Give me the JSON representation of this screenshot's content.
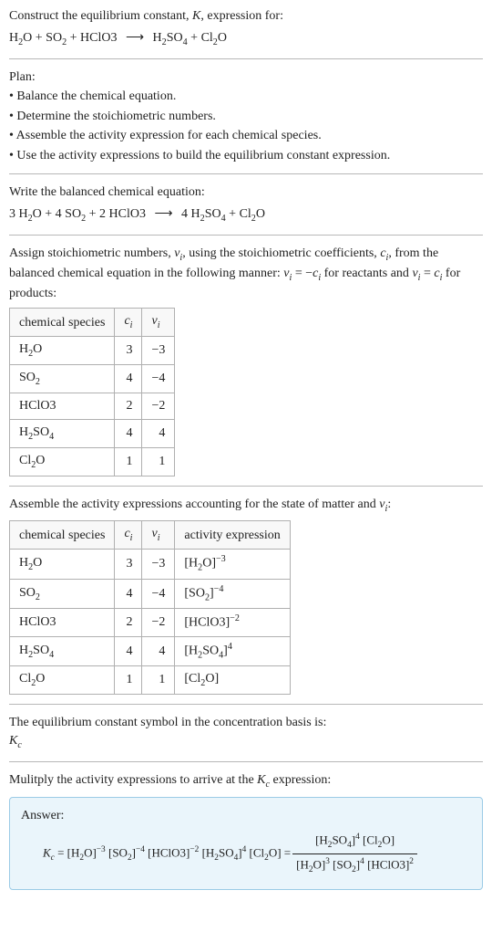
{
  "header": {
    "prompt_prefix": "Construct the equilibrium constant, ",
    "K": "K",
    "prompt_suffix": ", expression for:"
  },
  "unbalanced": {
    "lhs": [
      {
        "coef": "",
        "base": "H",
        "sub1": "2",
        "mid": "O"
      },
      {
        "coef": "",
        "base": "SO",
        "sub1": "2"
      },
      {
        "coef": "",
        "base": "HClO3"
      }
    ],
    "arrow": "⟶",
    "rhs": [
      {
        "coef": "",
        "base": "H",
        "sub1": "2",
        "mid": "SO",
        "sub2": "4"
      },
      {
        "coef": "",
        "base": "Cl",
        "sub1": "2",
        "mid": "O"
      }
    ]
  },
  "plan": {
    "label": "Plan:",
    "items": [
      "• Balance the chemical equation.",
      "• Determine the stoichiometric numbers.",
      "• Assemble the activity expression for each chemical species.",
      "• Use the activity expressions to build the equilibrium constant expression."
    ]
  },
  "balanced_label": "Write the balanced chemical equation:",
  "balanced": {
    "lhs": [
      {
        "coef": "3 ",
        "base": "H",
        "sub1": "2",
        "mid": "O"
      },
      {
        "coef": "4 ",
        "base": "SO",
        "sub1": "2"
      },
      {
        "coef": "2 ",
        "base": "HClO3"
      }
    ],
    "arrow": "⟶",
    "rhs": [
      {
        "coef": "4 ",
        "base": "H",
        "sub1": "2",
        "mid": "SO",
        "sub2": "4"
      },
      {
        "coef": "",
        "base": "Cl",
        "sub1": "2",
        "mid": "O"
      }
    ]
  },
  "stoich_text": {
    "p1": "Assign stoichiometric numbers, ",
    "nu": "ν",
    "sub_i": "i",
    "p2": ", using the stoichiometric coefficients, ",
    "c": "c",
    "p3": ", from the balanced chemical equation in the following manner: ",
    "eq1a": "ν",
    "eq1b": " = −",
    "eq1c": "c",
    "p4": " for reactants and ",
    "eq2a": "ν",
    "eq2b": " = ",
    "eq2c": "c",
    "p5": " for products:"
  },
  "table1": {
    "headers": {
      "species": "chemical species",
      "c": "c",
      "nu": "ν",
      "i": "i"
    },
    "rows": [
      {
        "sp_a": "H",
        "sp_s1": "2",
        "sp_b": "O",
        "c": "3",
        "nu": "−3"
      },
      {
        "sp_a": "SO",
        "sp_s1": "2",
        "sp_b": "",
        "c": "4",
        "nu": "−4"
      },
      {
        "sp_a": "HClO3",
        "sp_s1": "",
        "sp_b": "",
        "c": "2",
        "nu": "−2"
      },
      {
        "sp_a": "H",
        "sp_s1": "2",
        "sp_b": "SO",
        "sp_s2": "4",
        "c": "4",
        "nu": "4"
      },
      {
        "sp_a": "Cl",
        "sp_s1": "2",
        "sp_b": "O",
        "c": "1",
        "nu": "1"
      }
    ]
  },
  "assemble_text": {
    "p1": "Assemble the activity expressions accounting for the state of matter and ",
    "nu": "ν",
    "i": "i",
    "p2": ":"
  },
  "table2": {
    "headers": {
      "species": "chemical species",
      "c": "c",
      "nu": "ν",
      "i": "i",
      "act": "activity expression"
    },
    "rows": [
      {
        "sp_a": "H",
        "sp_s1": "2",
        "sp_b": "O",
        "c": "3",
        "nu": "−3",
        "act_a": "[H",
        "act_s1": "2",
        "act_b": "O]",
        "exp": "−3"
      },
      {
        "sp_a": "SO",
        "sp_s1": "2",
        "sp_b": "",
        "c": "4",
        "nu": "−4",
        "act_a": "[SO",
        "act_s1": "2",
        "act_b": "]",
        "exp": "−4"
      },
      {
        "sp_a": "HClO3",
        "sp_s1": "",
        "sp_b": "",
        "c": "2",
        "nu": "−2",
        "act_a": "[HClO3]",
        "act_s1": "",
        "act_b": "",
        "exp": "−2"
      },
      {
        "sp_a": "H",
        "sp_s1": "2",
        "sp_b": "SO",
        "sp_s2": "4",
        "c": "4",
        "nu": "4",
        "act_a": "[H",
        "act_s1": "2",
        "act_b": "SO",
        "act_s2": "4",
        "act_c": "]",
        "exp": "4"
      },
      {
        "sp_a": "Cl",
        "sp_s1": "2",
        "sp_b": "O",
        "c": "1",
        "nu": "1",
        "act_a": "[Cl",
        "act_s1": "2",
        "act_b": "O]",
        "exp": ""
      }
    ]
  },
  "kc_symbol_text": "The equilibrium constant symbol in the concentration basis is:",
  "kc": {
    "K": "K",
    "c": "c"
  },
  "multiply_text": {
    "p1": "Mulitply the activity expressions to arrive at the ",
    "K": "K",
    "c": "c",
    "p2": " expression:"
  },
  "answer": {
    "label": "Answer:",
    "lhs_K": "K",
    "lhs_c": "c",
    "terms": [
      {
        "a": "[H",
        "s1": "2",
        "b": "O]",
        "exp": "−3"
      },
      {
        "a": "[SO",
        "s1": "2",
        "b": "]",
        "exp": "−4"
      },
      {
        "a": "[HClO3]",
        "exp": "−2"
      },
      {
        "a": "[H",
        "s1": "2",
        "b": "SO",
        "s2": "4",
        "c": "]",
        "exp": "4"
      },
      {
        "a": "[Cl",
        "s1": "2",
        "b": "O]"
      }
    ],
    "frac_num": [
      {
        "a": "[H",
        "s1": "2",
        "b": "SO",
        "s2": "4",
        "c": "]",
        "exp": "4"
      },
      {
        "a": "[Cl",
        "s1": "2",
        "b": "O]"
      }
    ],
    "frac_den": [
      {
        "a": "[H",
        "s1": "2",
        "b": "O]",
        "exp": "3"
      },
      {
        "a": "[SO",
        "s1": "2",
        "b": "]",
        "exp": "4"
      },
      {
        "a": "[HClO3]",
        "exp": "2"
      }
    ]
  }
}
